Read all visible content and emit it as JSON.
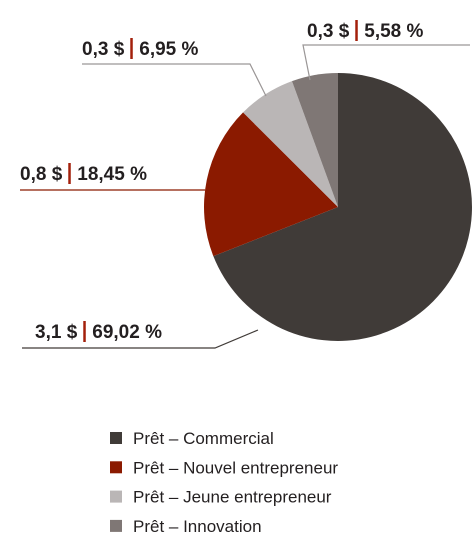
{
  "chart_data": {
    "type": "pie",
    "categories": [
      "Prêt – Commercial",
      "Prêt – Nouvel entrepreneur",
      "Prêt – Jeune entrepreneur",
      "Prêt – Innovation"
    ],
    "values": [
      69.02,
      18.45,
      6.95,
      5.58
    ],
    "value_labels": [
      "69,02 %",
      "18,45 %",
      "6,95 %",
      "5,58 %"
    ],
    "amounts": [
      3.1,
      0.8,
      0.3,
      0.3
    ],
    "amount_labels": [
      "3,1 $",
      "0,8 $",
      "0,3 $",
      "0,3 $"
    ],
    "colors": [
      "#403b38",
      "#8b1a00",
      "#bab6b6",
      "#7f7775"
    ],
    "separator_color": "#a3200b"
  }
}
